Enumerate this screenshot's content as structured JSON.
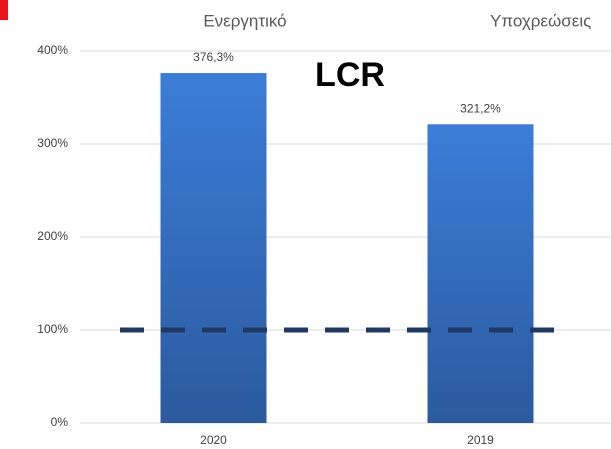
{
  "chart_data": {
    "type": "bar",
    "title": "LCR",
    "headers": [
      "Ενεργητικό",
      "Υποχρεώσεις"
    ],
    "categories": [
      "2020",
      "2019"
    ],
    "values": [
      376.3,
      321.2
    ],
    "value_labels": [
      "376,3%",
      "321,2%"
    ],
    "color": "#3674c8",
    "ylim": [
      0,
      400
    ],
    "yticks": [
      {
        "value": 0,
        "label": "0%"
      },
      {
        "value": 100,
        "label": "100%"
      },
      {
        "value": 200,
        "label": "200%"
      },
      {
        "value": 300,
        "label": "300%"
      },
      {
        "value": 400,
        "label": "400%"
      }
    ],
    "grid": true,
    "threshold": 100,
    "threshold_color": "#1f3864"
  }
}
